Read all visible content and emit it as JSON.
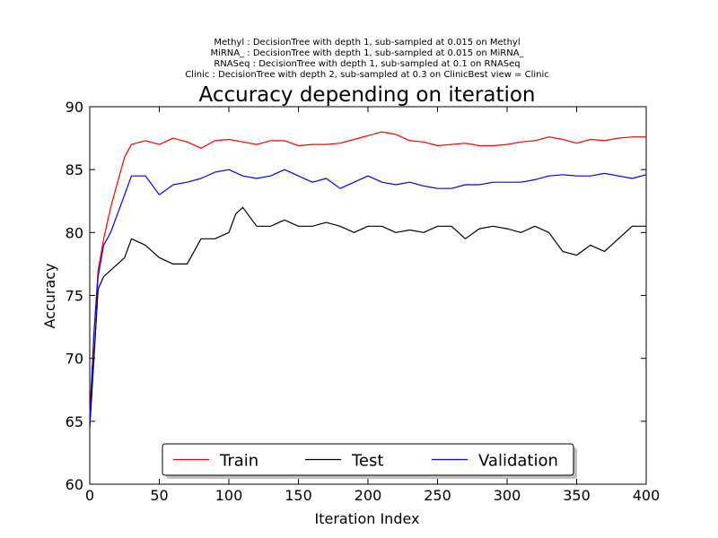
{
  "chart_data": {
    "type": "line",
    "subtitle_lines": [
      "Methyl : DecisionTree with depth 1,  sub-sampled at 0.015 on Methyl",
      "MiRNA_ : DecisionTree with depth 1,  sub-sampled at 0.015 on MiRNA_",
      "RNASeq : DecisionTree with depth 1,  sub-sampled at 0.1 on RNASeq",
      "Clinic : DecisionTree with depth 2,  sub-sampled at 0.3 on ClinicBest view = Clinic"
    ],
    "title": "Accuracy depending on iteration",
    "xlabel": "Iteration Index",
    "ylabel": "Accuracy",
    "xlim": [
      0,
      400
    ],
    "ylim": [
      60,
      90
    ],
    "xticks": [
      0,
      50,
      100,
      150,
      200,
      250,
      300,
      350,
      400
    ],
    "yticks": [
      60,
      65,
      70,
      75,
      80,
      85,
      90
    ],
    "grid": false,
    "legend_position": "bottom-center",
    "series": [
      {
        "name": "Train",
        "color": "#ff0000",
        "x": [
          0,
          3,
          6,
          10,
          15,
          20,
          25,
          30,
          40,
          50,
          60,
          70,
          80,
          90,
          100,
          110,
          120,
          130,
          140,
          150,
          160,
          170,
          180,
          190,
          200,
          210,
          220,
          230,
          240,
          250,
          260,
          270,
          280,
          290,
          300,
          310,
          320,
          330,
          340,
          350,
          360,
          370,
          380,
          390,
          400
        ],
        "y": [
          65.5,
          72.0,
          77.0,
          79.5,
          82.0,
          84.0,
          86.0,
          87.0,
          87.3,
          87.0,
          87.5,
          87.2,
          86.7,
          87.3,
          87.4,
          87.2,
          87.0,
          87.3,
          87.3,
          86.9,
          87.0,
          87.0,
          87.1,
          87.4,
          87.7,
          88.0,
          87.8,
          87.3,
          87.2,
          86.9,
          87.0,
          87.1,
          86.9,
          86.9,
          87.0,
          87.2,
          87.3,
          87.6,
          87.4,
          87.1,
          87.4,
          87.3,
          87.5,
          87.6,
          87.6
        ]
      },
      {
        "name": "Test",
        "color": "#000000",
        "x": [
          0,
          3,
          6,
          10,
          15,
          20,
          25,
          30,
          40,
          50,
          60,
          70,
          80,
          90,
          100,
          105,
          110,
          120,
          130,
          140,
          150,
          160,
          170,
          180,
          190,
          200,
          210,
          220,
          230,
          240,
          250,
          260,
          270,
          280,
          290,
          300,
          310,
          320,
          330,
          340,
          350,
          360,
          370,
          380,
          390,
          400
        ],
        "y": [
          64.5,
          70.0,
          75.5,
          76.5,
          77.0,
          77.5,
          78.0,
          79.5,
          79.0,
          78.0,
          77.5,
          77.5,
          79.5,
          79.5,
          80.0,
          81.5,
          82.0,
          80.5,
          80.5,
          81.0,
          80.5,
          80.5,
          80.8,
          80.5,
          80.0,
          80.5,
          80.5,
          80.0,
          80.2,
          80.0,
          80.5,
          80.5,
          79.5,
          80.3,
          80.5,
          80.3,
          80.0,
          80.5,
          80.0,
          78.5,
          78.2,
          79.0,
          78.5,
          79.5,
          80.5,
          80.5
        ]
      },
      {
        "name": "Validation",
        "color": "#0000ff",
        "x": [
          0,
          3,
          6,
          10,
          15,
          20,
          25,
          30,
          40,
          50,
          60,
          70,
          80,
          90,
          100,
          110,
          120,
          130,
          140,
          150,
          160,
          170,
          180,
          190,
          200,
          210,
          220,
          230,
          240,
          250,
          260,
          270,
          280,
          290,
          300,
          310,
          320,
          330,
          340,
          350,
          360,
          370,
          380,
          390,
          400
        ],
        "y": [
          65.0,
          72.0,
          76.5,
          79.0,
          80.0,
          81.5,
          83.0,
          84.5,
          84.5,
          83.0,
          83.8,
          84.0,
          84.3,
          84.8,
          85.0,
          84.5,
          84.3,
          84.5,
          85.0,
          84.5,
          84.0,
          84.3,
          83.5,
          84.0,
          84.5,
          84.0,
          83.8,
          84.0,
          83.7,
          83.5,
          83.5,
          83.8,
          83.8,
          84.0,
          84.0,
          84.0,
          84.2,
          84.5,
          84.6,
          84.5,
          84.5,
          84.7,
          84.5,
          84.3,
          84.6
        ]
      }
    ]
  }
}
